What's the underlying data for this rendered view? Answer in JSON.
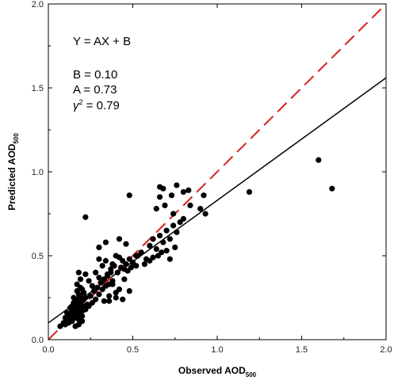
{
  "chart_data": {
    "type": "scatter",
    "xlabel": "Observed AOD",
    "xlabel_sub": "500",
    "ylabel": "Predicted AOD",
    "ylabel_sub": "500",
    "xlim": [
      0,
      2.0
    ],
    "ylim": [
      0,
      2.0
    ],
    "x_ticks": [
      "0.0",
      "0.5",
      "1.0",
      "1.5",
      "2.0"
    ],
    "y_ticks": [
      "0.0",
      "0.5",
      "1.0",
      "1.5",
      "2.0"
    ],
    "grid": false,
    "annotations": {
      "equation": "Y = AX + B",
      "b_label": "B = 0.10",
      "a_label": "A = 0.73",
      "r2_symbol": "γ",
      "r2_sup": "2",
      "r2_value": " = 0.79"
    },
    "series": [
      {
        "kind": "points",
        "color": "#000000",
        "x": [
          0.07,
          0.09,
          0.1,
          0.11,
          0.12,
          0.13,
          0.14,
          0.15,
          0.16,
          0.17,
          0.18,
          0.19,
          0.2,
          0.21,
          0.22,
          0.23,
          0.1,
          0.12,
          0.13,
          0.14,
          0.15,
          0.16,
          0.17,
          0.18,
          0.19,
          0.2,
          0.21,
          0.22,
          0.11,
          0.13,
          0.15,
          0.17,
          0.19,
          0.21,
          0.12,
          0.14,
          0.16,
          0.18,
          0.2,
          0.14,
          0.16,
          0.18,
          0.15,
          0.17,
          0.19,
          0.16,
          0.18,
          0.2,
          0.22,
          0.24,
          0.26,
          0.28,
          0.3,
          0.32,
          0.34,
          0.36,
          0.38,
          0.25,
          0.27,
          0.29,
          0.31,
          0.33,
          0.35,
          0.37,
          0.24,
          0.28,
          0.32,
          0.3,
          0.34,
          0.38,
          0.4,
          0.42,
          0.44,
          0.46,
          0.48,
          0.5,
          0.52,
          0.35,
          0.37,
          0.39,
          0.41,
          0.43,
          0.45,
          0.47,
          0.49,
          0.33,
          0.36,
          0.4,
          0.44,
          0.48,
          0.3,
          0.26,
          0.22,
          0.18,
          0.19,
          0.17,
          0.2,
          0.55,
          0.58,
          0.6,
          0.62,
          0.64,
          0.66,
          0.68,
          0.7,
          0.72,
          0.74,
          0.76,
          0.78,
          0.8,
          0.6,
          0.65,
          0.7,
          0.75,
          0.57,
          0.62,
          0.67,
          0.72,
          0.64,
          0.69,
          0.66,
          0.74,
          0.84,
          0.9,
          0.93,
          0.92,
          0.68,
          0.76,
          0.8,
          0.22,
          0.48,
          0.66,
          0.73,
          0.83,
          0.36,
          0.4,
          0.42,
          0.38,
          0.45,
          0.5,
          0.52,
          0.3,
          0.34,
          0.42,
          0.46,
          0.53,
          1.19,
          1.6,
          1.68
        ],
        "y": [
          0.08,
          0.1,
          0.09,
          0.11,
          0.12,
          0.13,
          0.12,
          0.14,
          0.15,
          0.16,
          0.15,
          0.18,
          0.17,
          0.19,
          0.2,
          0.21,
          0.13,
          0.15,
          0.14,
          0.17,
          0.18,
          0.2,
          0.19,
          0.22,
          0.21,
          0.23,
          0.24,
          0.25,
          0.16,
          0.19,
          0.22,
          0.24,
          0.26,
          0.28,
          0.1,
          0.11,
          0.13,
          0.12,
          0.14,
          0.2,
          0.23,
          0.27,
          0.25,
          0.29,
          0.31,
          0.08,
          0.09,
          0.11,
          0.18,
          0.2,
          0.22,
          0.24,
          0.27,
          0.3,
          0.32,
          0.33,
          0.35,
          0.26,
          0.29,
          0.31,
          0.34,
          0.36,
          0.38,
          0.4,
          0.35,
          0.4,
          0.44,
          0.48,
          0.47,
          0.45,
          0.5,
          0.49,
          0.47,
          0.45,
          0.48,
          0.46,
          0.44,
          0.39,
          0.42,
          0.44,
          0.4,
          0.43,
          0.36,
          0.41,
          0.43,
          0.23,
          0.26,
          0.28,
          0.24,
          0.29,
          0.37,
          0.32,
          0.39,
          0.4,
          0.36,
          0.33,
          0.3,
          0.52,
          0.48,
          0.56,
          0.6,
          0.54,
          0.62,
          0.58,
          0.65,
          0.6,
          0.68,
          0.64,
          0.7,
          0.72,
          0.47,
          0.5,
          0.53,
          0.55,
          0.45,
          0.49,
          0.52,
          0.48,
          0.78,
          0.8,
          0.85,
          0.75,
          0.8,
          0.78,
          0.75,
          0.86,
          0.9,
          0.92,
          0.88,
          0.73,
          0.86,
          0.91,
          0.86,
          0.89,
          0.23,
          0.25,
          0.3,
          0.33,
          0.42,
          0.46,
          0.5,
          0.55,
          0.58,
          0.6,
          0.57,
          0.5,
          0.88,
          1.07,
          0.9
        ]
      },
      {
        "kind": "line",
        "color": "#000000",
        "style": "solid",
        "x": [
          0,
          2.0
        ],
        "y": [
          0.1,
          1.56
        ]
      },
      {
        "kind": "line",
        "color": "#d62020",
        "style": "dashed",
        "x": [
          0,
          2.0
        ],
        "y": [
          0,
          2.0
        ]
      }
    ]
  }
}
